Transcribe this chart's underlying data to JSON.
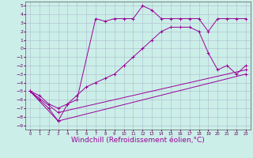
{
  "xlabel": "Windchill (Refroidissement éolien,°C)",
  "xlim": [
    -0.5,
    23.5
  ],
  "ylim": [
    -9.5,
    5.5
  ],
  "xticks": [
    0,
    1,
    2,
    3,
    4,
    5,
    6,
    7,
    8,
    9,
    10,
    11,
    12,
    13,
    14,
    15,
    16,
    17,
    18,
    19,
    20,
    21,
    22,
    23
  ],
  "yticks": [
    5,
    4,
    3,
    2,
    1,
    0,
    -1,
    -2,
    -3,
    -4,
    -5,
    -6,
    -7,
    -8,
    -9
  ],
  "bg_color": "#cceee8",
  "grid_color": "#aabbcc",
  "line_color": "#990099",
  "line1_x": [
    0,
    1,
    2,
    3,
    4,
    5,
    7,
    8,
    9,
    10,
    11,
    12,
    13,
    14,
    15,
    16,
    17,
    18,
    19,
    20,
    21,
    22,
    23
  ],
  "line1_y": [
    -5,
    -6,
    -7,
    -8.5,
    -6.5,
    -6.0,
    3.5,
    3.2,
    3.5,
    3.5,
    3.5,
    5.0,
    4.5,
    3.5,
    3.5,
    3.5,
    3.5,
    3.5,
    2.0,
    3.5,
    3.5,
    3.5,
    3.5
  ],
  "line2_x": [
    0,
    1,
    2,
    3,
    4,
    5,
    6,
    7,
    8,
    9,
    10,
    11,
    12,
    13,
    14,
    15,
    16,
    17,
    18,
    19,
    20,
    21,
    22,
    23
  ],
  "line2_y": [
    -5,
    -5.5,
    -6.5,
    -7,
    -6.5,
    -5.5,
    -4.5,
    -4,
    -3.5,
    -3,
    -2,
    -1,
    0,
    1,
    2,
    2.5,
    2.5,
    2.5,
    2,
    -0.5,
    -2.5,
    -2,
    -3,
    -2
  ],
  "line3_x": [
    0,
    3,
    23
  ],
  "line3_y": [
    -5,
    -8.5,
    -3.0
  ],
  "line4_x": [
    0,
    3,
    23
  ],
  "line4_y": [
    -5,
    -7.5,
    -2.5
  ],
  "xlabel_fontsize": 6.5,
  "tick_fontsize": 4.5
}
